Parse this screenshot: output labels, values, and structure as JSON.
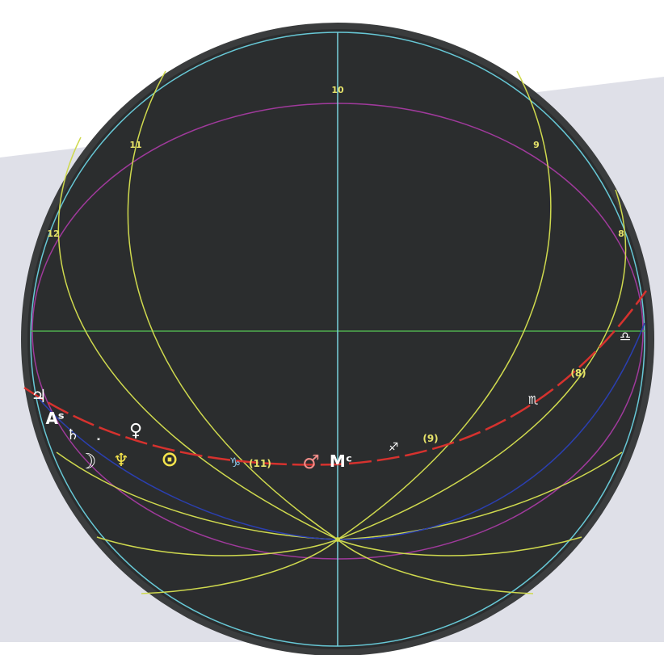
{
  "colors": {
    "page_bg": "#ffffff",
    "band": "#dfe0e8",
    "sphere_fill": "#2b2d2e",
    "sphere_rim": "#3a3c3d",
    "horizon_circle": "#67c8d6",
    "house_line": "#cfd94e",
    "house_label": "#e6e36a",
    "equator_band": "#a03a9c",
    "horizon_line": "#4fae4f",
    "ecliptic": "#d6322e",
    "blue_arc": "#2b3fb0",
    "meridian": "#79d2dc",
    "planet_white": "#ffffff",
    "sun_yellow": "#f4e44c",
    "mars_pink": "#f08c88",
    "capricorn_blue": "#8ec6e8"
  },
  "house_labels": {
    "h10": "10",
    "h11": "11",
    "h9": "9",
    "h12": "12",
    "h8": "8"
  },
  "ecliptic_labels": {
    "e11": "(11)",
    "e9": "(9)",
    "e8": "(8)"
  },
  "glyphs": {
    "jupiter": "♃",
    "ascendant": "Aˢ",
    "saturn": "♄",
    "uranus": "˟",
    "venus": "♀",
    "moon": "☽",
    "pluto": "♆",
    "sun": "⊙",
    "capricorn": "♑",
    "mars": "♂",
    "mc": "Mᶜ",
    "sagittarius": "♐",
    "scorpio": "♏",
    "libra": "♎"
  }
}
